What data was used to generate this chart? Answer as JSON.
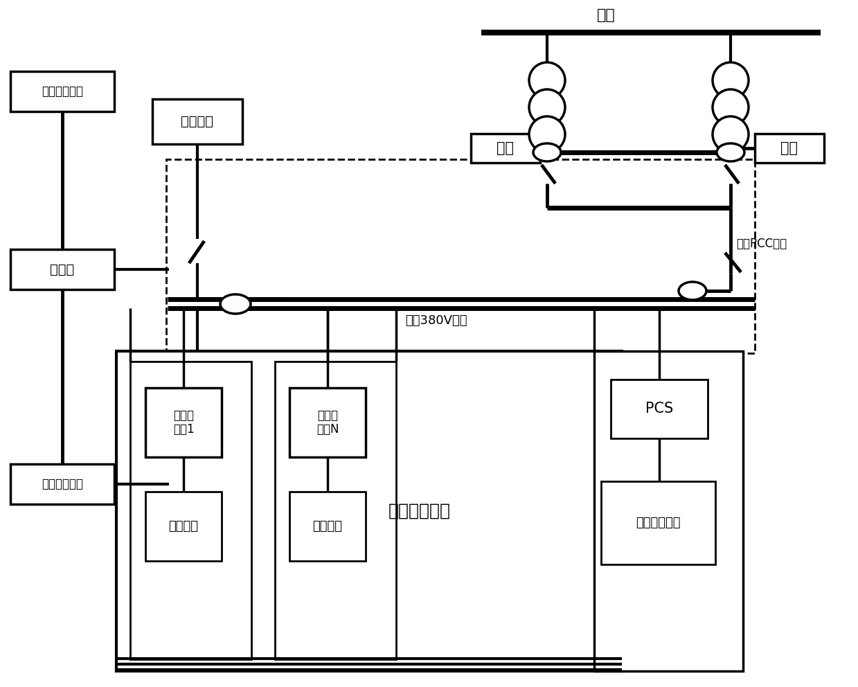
{
  "bg_color": "#ffffff",
  "labels": {
    "shidian": "市电",
    "fuhao1": "负荷",
    "fuhao2": "负荷",
    "binwang_pcc": "并网PCC开关",
    "weiwang_bus": "微网380V母线",
    "yuancheng": "远程监控系统",
    "yitaiwang": "以太网",
    "weiwang_monitor": "微网监控系统",
    "teding_fuhao": "特定负荷",
    "guangfu_system": "光伏发电系统",
    "guangfu_inv1": "光伏逆\n变器1",
    "guangfu_invN": "光伏逆\n变器N",
    "guangfu_module1": "光伏组件",
    "guangfu_module2": "光伏组件",
    "pcs": "PCS",
    "battery": "电池储能系统"
  }
}
